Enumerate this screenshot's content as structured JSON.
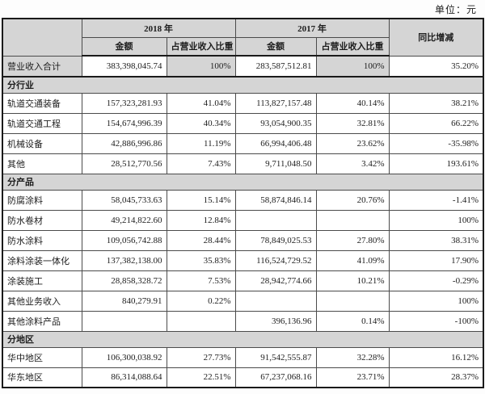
{
  "unit_label": "单位：元",
  "table": {
    "header": {
      "year_2018": "2018 年",
      "year_2017": "2017 年",
      "amount": "金额",
      "pct_of_revenue": "占营业收入比重",
      "yoy_change": "同比增减"
    },
    "rows": [
      {
        "type": "data",
        "highlight": true,
        "label": "营业收入合计",
        "amount_2018": "383,398,045.74",
        "pct_2018": "100%",
        "amount_2017": "283,587,512.81",
        "pct_2017": "100%",
        "yoy": "35.20%"
      },
      {
        "type": "section",
        "label": "分行业"
      },
      {
        "type": "data",
        "label": "轨道交通装备",
        "amount_2018": "157,323,281.93",
        "pct_2018": "41.04%",
        "amount_2017": "113,827,157.48",
        "pct_2017": "40.14%",
        "yoy": "38.21%"
      },
      {
        "type": "data",
        "label": "轨道交通工程",
        "amount_2018": "154,674,996.39",
        "pct_2018": "40.34%",
        "amount_2017": "93,054,900.35",
        "pct_2017": "32.81%",
        "yoy": "66.22%"
      },
      {
        "type": "data",
        "label": "机械设备",
        "amount_2018": "42,886,996.86",
        "pct_2018": "11.19%",
        "amount_2017": "66,994,406.48",
        "pct_2017": "23.62%",
        "yoy": "-35.98%"
      },
      {
        "type": "data",
        "label": "其他",
        "amount_2018": "28,512,770.56",
        "pct_2018": "7.43%",
        "amount_2017": "9,711,048.50",
        "pct_2017": "3.42%",
        "yoy": "193.61%"
      },
      {
        "type": "section",
        "label": "分产品"
      },
      {
        "type": "data",
        "label": "防腐涂料",
        "amount_2018": "58,045,733.63",
        "pct_2018": "15.14%",
        "amount_2017": "58,874,846.14",
        "pct_2017": "20.76%",
        "yoy": "-1.41%"
      },
      {
        "type": "data",
        "label": "防水卷材",
        "amount_2018": "49,214,822.60",
        "pct_2018": "12.84%",
        "amount_2017": "",
        "pct_2017": "",
        "yoy": "100%"
      },
      {
        "type": "data",
        "label": "防水涂料",
        "amount_2018": "109,056,742.88",
        "pct_2018": "28.44%",
        "amount_2017": "78,849,025.53",
        "pct_2017": "27.80%",
        "yoy": "38.31%"
      },
      {
        "type": "data",
        "label": "涂料涂装一体化",
        "amount_2018": "137,382,138.00",
        "pct_2018": "35.83%",
        "amount_2017": "116,524,729.52",
        "pct_2017": "41.09%",
        "yoy": "17.90%"
      },
      {
        "type": "data",
        "label": "涂装施工",
        "amount_2018": "28,858,328.72",
        "pct_2018": "7.53%",
        "amount_2017": "28,942,774.66",
        "pct_2017": "10.21%",
        "yoy": "-0.29%"
      },
      {
        "type": "data",
        "label": "其他业务收入",
        "amount_2018": "840,279.91",
        "pct_2018": "0.22%",
        "amount_2017": "",
        "pct_2017": "",
        "yoy": "100%"
      },
      {
        "type": "data",
        "label": "其他涂料产品",
        "amount_2018": "",
        "pct_2018": "",
        "amount_2017": "396,136.96",
        "pct_2017": "0.14%",
        "yoy": "-100%"
      },
      {
        "type": "section",
        "label": "分地区"
      },
      {
        "type": "data",
        "label": "华中地区",
        "amount_2018": "106,300,038.92",
        "pct_2018": "27.73%",
        "amount_2017": "91,542,555.87",
        "pct_2017": "32.28%",
        "yoy": "16.12%"
      },
      {
        "type": "data",
        "label": "华东地区",
        "amount_2018": "86,314,088.64",
        "pct_2018": "22.51%",
        "amount_2017": "67,237,068.16",
        "pct_2017": "23.71%",
        "yoy": "28.37%"
      }
    ]
  },
  "colors": {
    "band_gray": "#d5d5d5",
    "border": "#4b4b4b",
    "outer_border": "#1a1a1a",
    "text": "#1d1d1d",
    "page_bg": "#fdfdfd"
  }
}
